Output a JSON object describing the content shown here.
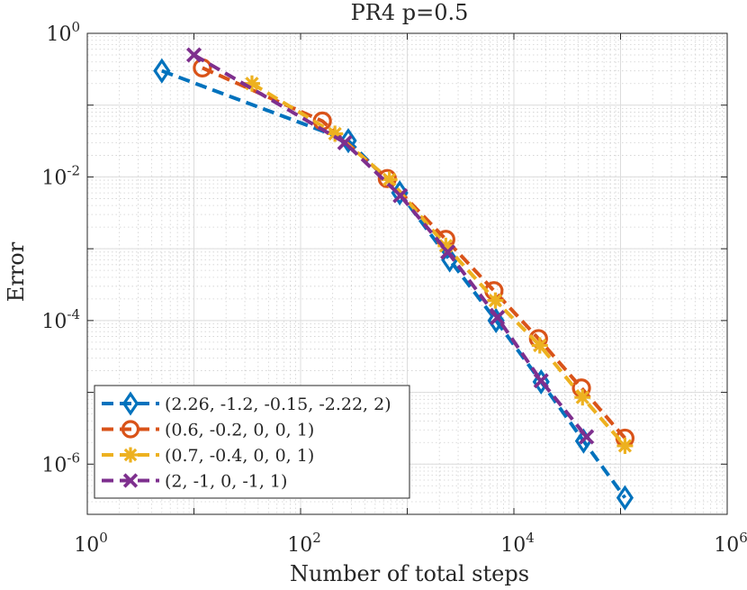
{
  "chart_data": {
    "type": "line",
    "title": "PR4 p=0.5",
    "xlabel": "Number of total steps",
    "ylabel": "Error",
    "xscale": "log",
    "yscale": "log",
    "xlim": [
      1,
      1000000
    ],
    "ylim": [
      2e-07,
      1
    ],
    "grid": true,
    "minor_grid": true,
    "legend_location": "bottom-left",
    "x_ticks": [
      {
        "base": "10",
        "exp": "0",
        "value": 1
      },
      {
        "base": "10",
        "exp": "2",
        "value": 100
      },
      {
        "base": "10",
        "exp": "4",
        "value": 10000
      },
      {
        "base": "10",
        "exp": "6",
        "value": 1000000
      }
    ],
    "y_ticks": [
      {
        "base": "10",
        "exp": "0",
        "value": 1
      },
      {
        "base": "10",
        "exp": "-2",
        "value": 0.01
      },
      {
        "base": "10",
        "exp": "-4",
        "value": 0.0001
      },
      {
        "base": "10",
        "exp": "-6",
        "value": 1e-06
      }
    ],
    "series": [
      {
        "name": "(2.26, -1.2, -0.15, -2.22, 2)",
        "color": "#0072BD",
        "marker": "diamond",
        "x": [
          5,
          280,
          850,
          2500,
          6800,
          18000,
          45000,
          110000
        ],
        "y": [
          0.3,
          0.032,
          0.006,
          0.0007,
          0.0001,
          1.4e-05,
          2.1e-06,
          3.4e-07
        ]
      },
      {
        "name": "(0.6, -0.2, 0, 0, 1)",
        "color": "#D95319",
        "marker": "circle",
        "x": [
          12,
          160,
          650,
          2300,
          6500,
          17000,
          43000,
          110000
        ],
        "y": [
          0.33,
          0.06,
          0.0095,
          0.00135,
          0.00026,
          5.6e-05,
          1.15e-05,
          2.3e-06
        ]
      },
      {
        "name": "(0.7, -0.4, 0, 0, 1)",
        "color": "#EDB120",
        "marker": "asterisk",
        "x": [
          35,
          210,
          680,
          2300,
          6700,
          17500,
          44000,
          110000
        ],
        "y": [
          0.2,
          0.04,
          0.0092,
          0.0011,
          0.00019,
          4.5e-05,
          8.5e-06,
          1.8e-06
        ]
      },
      {
        "name": "(2, -1, 0, -1, 1)",
        "color": "#7E2F8E",
        "marker": "cross",
        "x": [
          10,
          260,
          860,
          2400,
          7000,
          18000,
          48000
        ],
        "y": [
          0.5,
          0.03,
          0.0055,
          0.0009,
          0.00011,
          1.45e-05,
          2.4e-06
        ]
      }
    ]
  }
}
